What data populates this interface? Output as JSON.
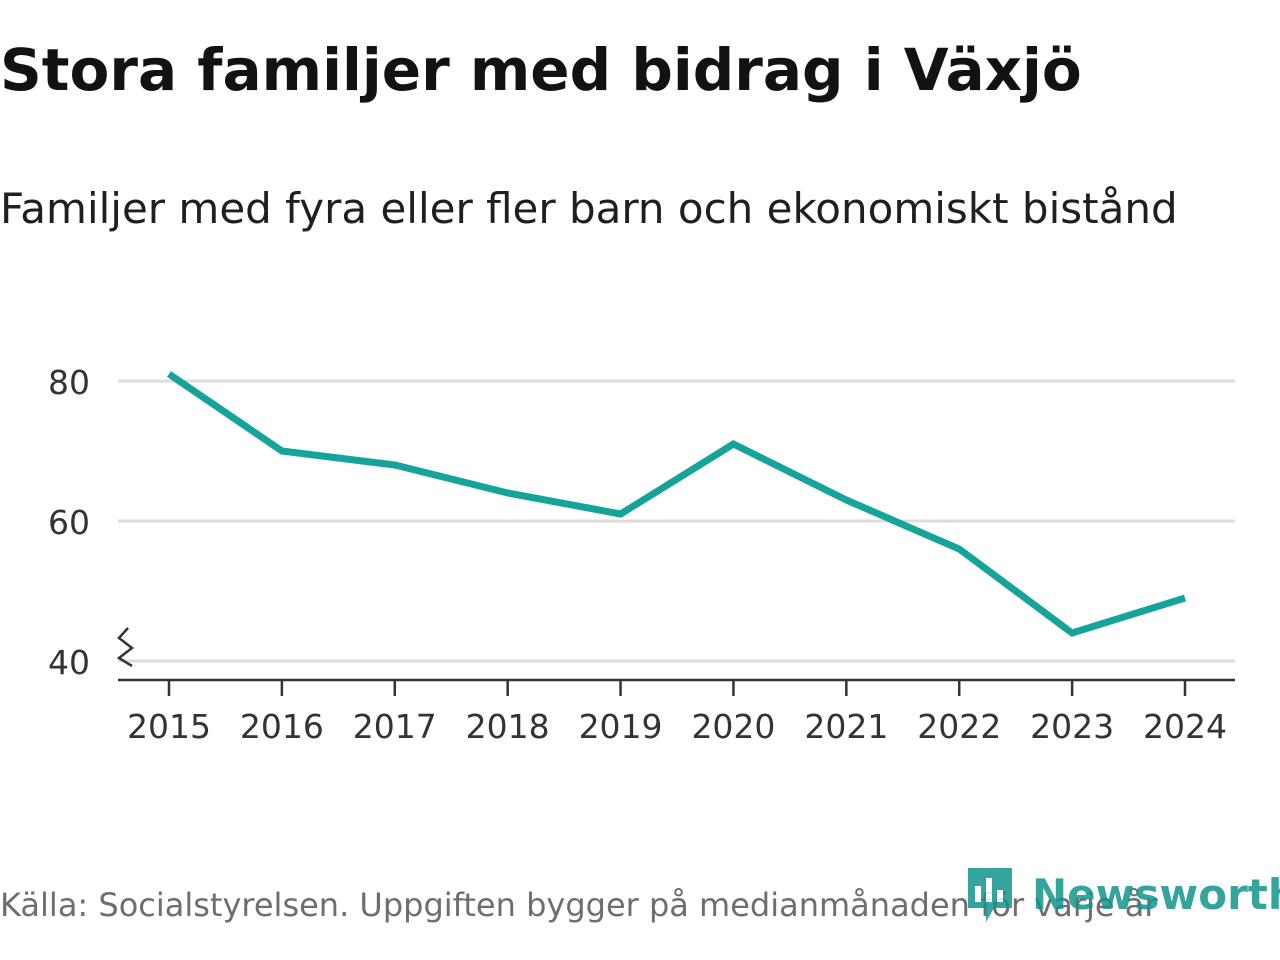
{
  "title": "Stora familjer med bidrag i Växjö",
  "subtitle": "Familjer med fyra eller fler barn och ekonomiskt bistånd",
  "source": "Källa: Socialstyrelsen. Uppgiften bygger på medianmånaden för varje år",
  "brand": "Newsworthy",
  "colors": {
    "line": "#16a39a",
    "grid": "#dddddd",
    "axis": "#333333",
    "brand": "#12958b"
  },
  "chart_data": {
    "type": "line",
    "title": "Stora familjer med bidrag i Växjö",
    "subtitle": "Familjer med fyra eller fler barn och ekonomiskt bistånd",
    "xlabel": "",
    "ylabel": "",
    "x": [
      "2015",
      "2016",
      "2017",
      "2018",
      "2019",
      "2020",
      "2021",
      "2022",
      "2023",
      "2024"
    ],
    "values": [
      81,
      70,
      68,
      64,
      61,
      71,
      63,
      56,
      44,
      49
    ],
    "yticks": [
      40,
      60,
      80
    ],
    "ylim": [
      37,
      90
    ],
    "grid": true,
    "axis_break": true
  }
}
